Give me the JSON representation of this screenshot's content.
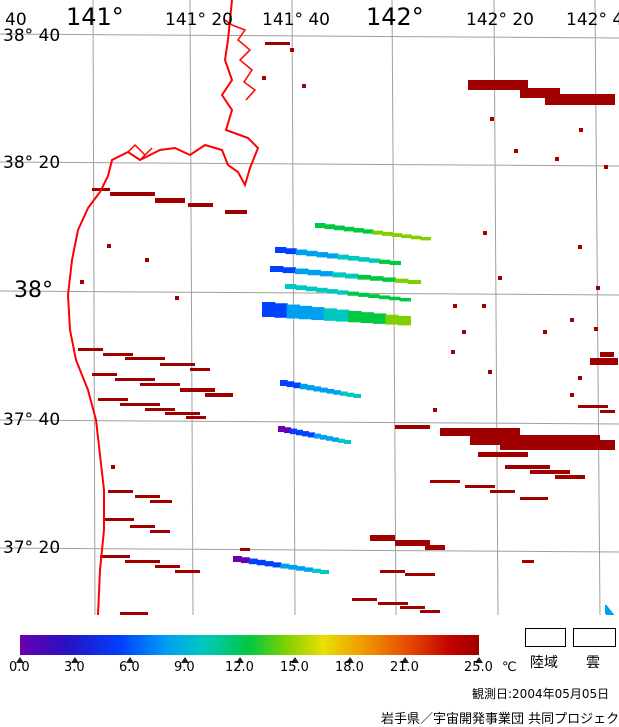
{
  "map": {
    "lon_labels": [
      {
        "text": "40",
        "size": "small"
      },
      {
        "text": "141°",
        "size": "big"
      },
      {
        "text": "141° 20",
        "size": "small"
      },
      {
        "text": "141° 40",
        "size": "small"
      },
      {
        "text": "142°",
        "size": "big"
      },
      {
        "text": "142° 20",
        "size": "small"
      },
      {
        "text": "142° 4",
        "size": "small"
      }
    ],
    "lat_labels": [
      {
        "text": "38° 40",
        "size": "small"
      },
      {
        "text": "38° 20",
        "size": "small"
      },
      {
        "text": "38°",
        "size": "big"
      },
      {
        "text": "37° 40",
        "size": "small"
      },
      {
        "text": "37° 20",
        "size": "small"
      }
    ],
    "coast_color": "#ff0000",
    "grid_color": "#a0a0a0",
    "pixel_color": "#a00000"
  },
  "colorbar": {
    "ticks": [
      "0.0",
      "3.0",
      "6.0",
      "9.0",
      "12.0",
      "15.0",
      "18.0",
      "21.0",
      "25.0"
    ],
    "unit": "℃",
    "colors": [
      "#6a00b0",
      "#0040ff",
      "#00a0f0",
      "#00c8c0",
      "#00c840",
      "#80d000",
      "#e8e000",
      "#f0a000",
      "#e85000",
      "#a00000"
    ]
  },
  "legend": {
    "land_label": "陸域",
    "cloud_label": "雲"
  },
  "footer": {
    "date_text": "観測日:2004年05月05日",
    "credit_text": "岩手県／宇宙開発事業団 共同プロジェクト"
  }
}
